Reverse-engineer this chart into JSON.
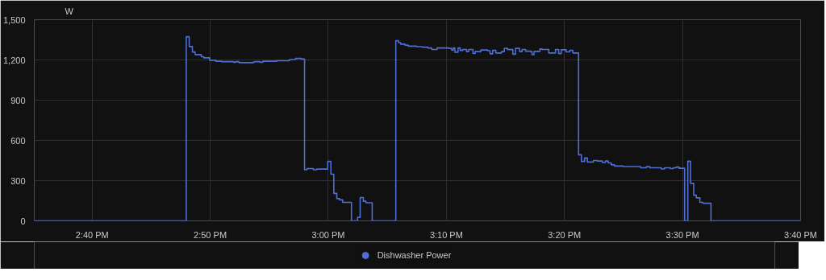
{
  "chart_data": {
    "type": "step",
    "ylabel": "W",
    "xlim": [
      14.585,
      15.6667
    ],
    "ylim": [
      0,
      1500
    ],
    "xticks": [
      {
        "value": 14.6667,
        "label": "2:40 PM"
      },
      {
        "value": 14.8333,
        "label": "2:50 PM"
      },
      {
        "value": 15.0,
        "label": "3:00 PM"
      },
      {
        "value": 15.1667,
        "label": "3:10 PM"
      },
      {
        "value": 15.3333,
        "label": "3:20 PM"
      },
      {
        "value": 15.5,
        "label": "3:30 PM"
      },
      {
        "value": 15.6667,
        "label": "3:40 PM"
      }
    ],
    "yticks": [
      0,
      300,
      600,
      900,
      {
        "value": 1200,
        "label": "1,200"
      },
      {
        "value": 1500,
        "label": "1,500"
      }
    ],
    "grid": true,
    "legend": "bottom",
    "x": [
      14.585,
      14.7995,
      14.8037,
      14.8082,
      14.812,
      14.8207,
      14.8243,
      14.8325,
      14.8412,
      14.8495,
      14.8663,
      14.8693,
      14.8738,
      14.8945,
      14.8963,
      14.9032,
      14.9077,
      14.9272,
      14.9452,
      14.9538,
      14.962,
      14.9665,
      14.97,
      14.979,
      14.9835,
      14.9992,
      15.0037,
      15.0078,
      15.012,
      15.0158,
      15.0203,
      15.0327,
      15.0413,
      15.045,
      15.0495,
      15.0533,
      15.062,
      15.0953,
      15.0992,
      15.1022,
      15.1082,
      15.1127,
      15.1247,
      15.1328,
      15.1405,
      15.146,
      15.1535,
      15.1703,
      15.1742,
      15.1765,
      15.1787,
      15.1832,
      15.1862,
      15.19,
      15.1952,
      15.1982,
      15.2042,
      15.2072,
      15.2155,
      15.2248,
      15.2283,
      15.232,
      15.2365,
      15.2447,
      15.2485,
      15.253,
      15.2605,
      15.2643,
      15.27,
      15.2737,
      15.2785,
      15.286,
      15.2875,
      15.2905,
      15.2988,
      15.3018,
      15.3112,
      15.3207,
      15.3252,
      15.3288,
      15.3357,
      15.3408,
      15.3453,
      15.3533,
      15.3573,
      15.3618,
      15.3657,
      15.3742,
      15.3795,
      15.387,
      15.3912,
      15.395,
      15.3995,
      15.404,
      15.4163,
      15.4407,
      15.449,
      15.4538,
      15.47,
      15.4745,
      15.4828,
      15.4873,
      15.4913,
      15.4952,
      15.503,
      15.5075,
      15.5113,
      15.5158,
      15.5195,
      15.5245,
      15.529,
      15.5402,
      15.6667
    ],
    "series": [
      {
        "name": "Dishwasher Power",
        "color": "#4f6fd6",
        "values": [
          0,
          1373,
          1300,
          1259,
          1240,
          1224,
          1216,
          1198,
          1190,
          1187,
          1183,
          1187,
          1180,
          1185,
          1187,
          1183,
          1190,
          1194,
          1203,
          1211,
          1207,
          381,
          390,
          381,
          386,
          443,
          348,
          205,
          166,
          157,
          138,
          0,
          26,
          174,
          146,
          135,
          0,
          1344,
          1329,
          1318,
          1310,
          1303,
          1299,
          1295,
          1289,
          1278,
          1289,
          1286,
          1273,
          1289,
          1258,
          1289,
          1271,
          1278,
          1262,
          1278,
          1248,
          1262,
          1274,
          1269,
          1246,
          1271,
          1252,
          1262,
          1286,
          1277,
          1243,
          1286,
          1262,
          1278,
          1265,
          1262,
          1239,
          1264,
          1282,
          1278,
          1252,
          1278,
          1247,
          1276,
          1260,
          1271,
          1252,
          493,
          443,
          469,
          439,
          450,
          446,
          435,
          446,
          432,
          418,
          409,
          405,
          396,
          404,
          396,
          387,
          396,
          390,
          396,
          401,
          392,
          0,
          445,
          280,
          191,
          172,
          138,
          131,
          0,
          0
        ]
      }
    ]
  }
}
